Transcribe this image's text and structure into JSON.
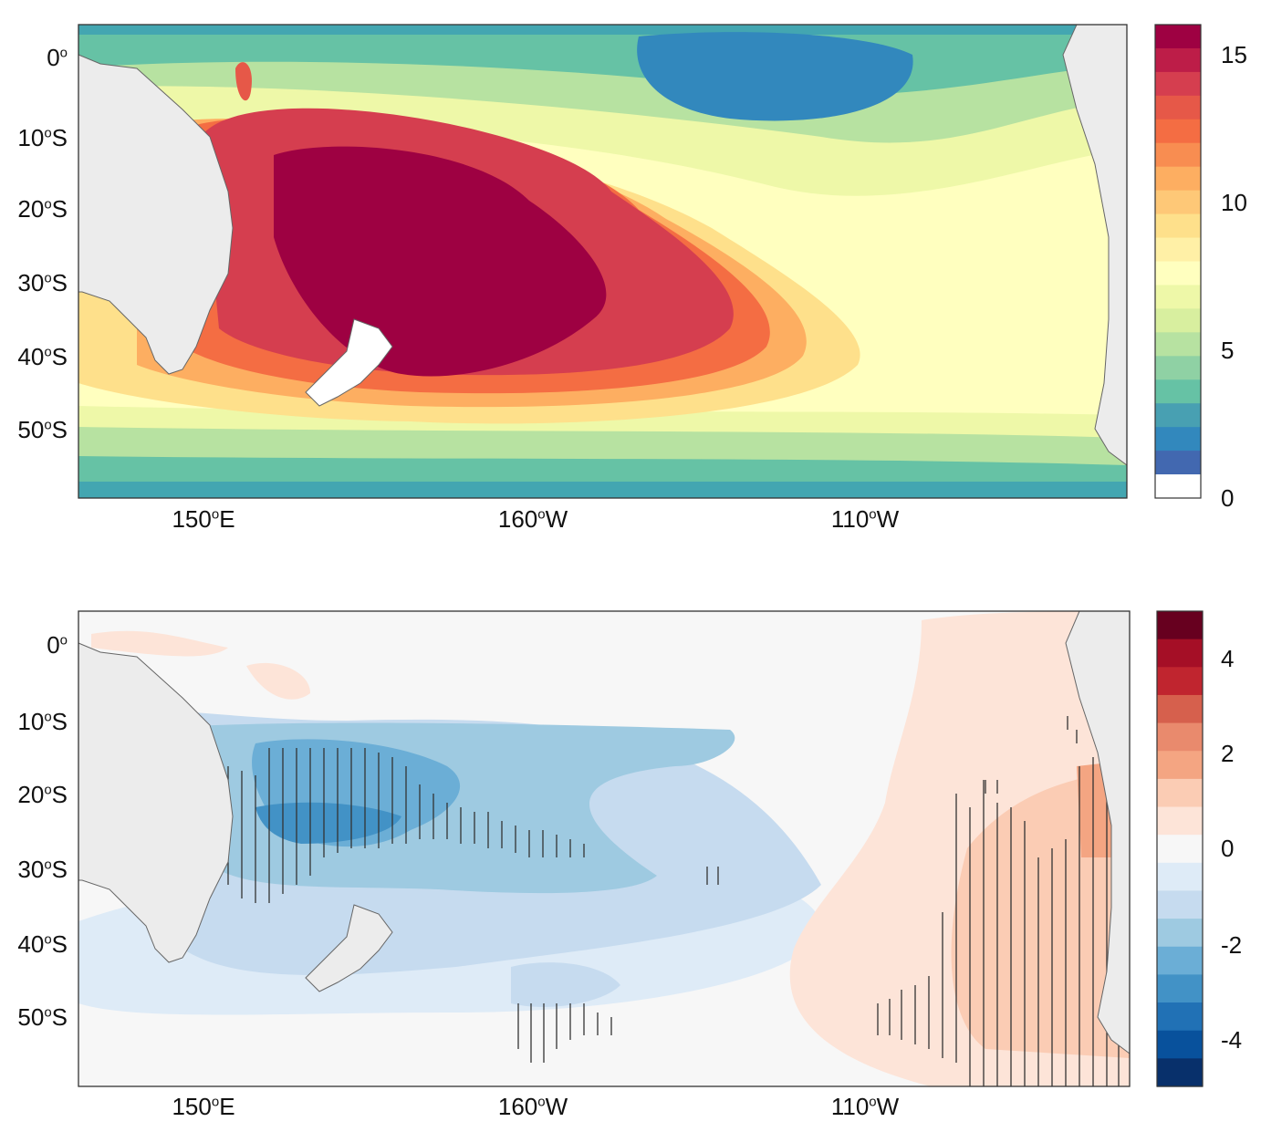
{
  "figure": {
    "lat_ticks": [
      {
        "deg": "0",
        "sup": "o",
        "hemi": ""
      },
      {
        "deg": "10",
        "sup": "o",
        "hemi": "S"
      },
      {
        "deg": "20",
        "sup": "o",
        "hemi": "S"
      },
      {
        "deg": "30",
        "sup": "o",
        "hemi": "S"
      },
      {
        "deg": "40",
        "sup": "o",
        "hemi": "S"
      },
      {
        "deg": "50",
        "sup": "o",
        "hemi": "S"
      }
    ],
    "lon_ticks": [
      {
        "deg": "150",
        "sup": "o",
        "hemi": "E"
      },
      {
        "deg": "160",
        "sup": "o",
        "hemi": "W"
      },
      {
        "deg": "110",
        "sup": "o",
        "hemi": "W"
      }
    ]
  },
  "panels": [
    {
      "id": "top",
      "colorbar": {
        "ticks": [
          "15",
          "10",
          "5",
          "0"
        ],
        "colors": [
          "#9e0142",
          "#bd1d48",
          "#d53e4f",
          "#e65848",
          "#f46d43",
          "#f88d51",
          "#fdae61",
          "#fec877",
          "#fee08b",
          "#fff0a6",
          "#ffffbf",
          "#eef8a8",
          "#d8ef9f",
          "#b7e2a1",
          "#8fd1a4",
          "#66c2a5",
          "#48a0b2",
          "#3288bd",
          "#4268b0",
          "#ffffff"
        ]
      }
    },
    {
      "id": "bottom",
      "colorbar": {
        "ticks": [
          "4",
          "2",
          "0",
          "-2",
          "-4"
        ],
        "colors": [
          "#67001f",
          "#a50f26",
          "#c0252f",
          "#d6604d",
          "#e98a6d",
          "#f4a582",
          "#fbccb4",
          "#fde4d8",
          "#f7f7f7",
          "#deebf7",
          "#c6dbef",
          "#9ecae1",
          "#6baed6",
          "#4292c6",
          "#2171b5",
          "#08519c",
          "#08306b"
        ]
      }
    }
  ]
}
